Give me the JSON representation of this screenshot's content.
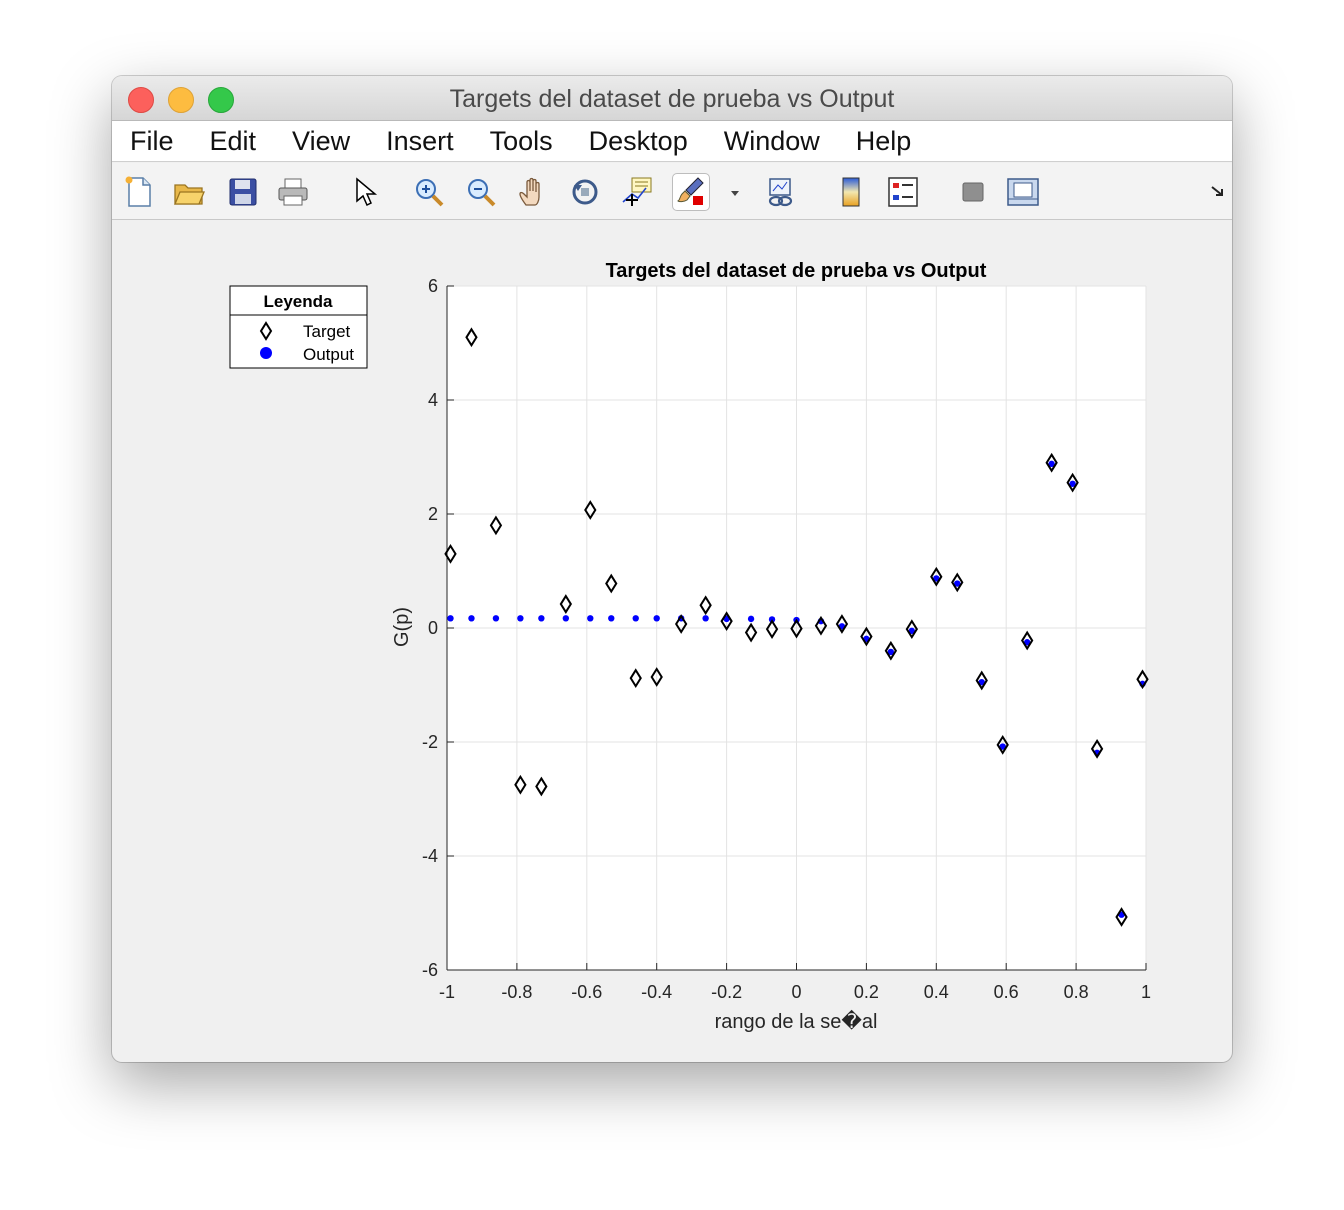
{
  "window": {
    "title": "Targets del dataset de prueba vs Output"
  },
  "menu": {
    "items": [
      "File",
      "Edit",
      "View",
      "Insert",
      "Tools",
      "Desktop",
      "Window",
      "Help"
    ]
  },
  "toolbar": {
    "icons": [
      "new-figure-icon",
      "open-file-icon",
      "save-icon",
      "print-icon",
      "pointer-icon",
      "zoom-in-icon",
      "zoom-out-icon",
      "pan-hand-icon",
      "rotate-3d-icon",
      "data-cursor-icon",
      "brush-icon",
      "brush-dropdown-icon",
      "link-plot-icon",
      "colorbar-icon",
      "legend-icon",
      "hide-plot-tools-icon",
      "show-plot-tools-icon",
      "dock-icon"
    ]
  },
  "legend": {
    "title": "Leyenda",
    "position": "outside-left"
  },
  "chart_data": {
    "type": "scatter",
    "title": "Targets del dataset de prueba vs Output",
    "xlabel": "rango de la se�al",
    "ylabel": "G(p)",
    "xlim": [
      -1,
      1
    ],
    "ylim": [
      -6,
      6
    ],
    "grid": true,
    "x_ticks": [
      "-1",
      "-0.8",
      "-0.6",
      "-0.4",
      "-0.2",
      "0",
      "0.2",
      "0.4",
      "0.6",
      "0.8",
      "1"
    ],
    "y_ticks": [
      "6",
      "4",
      "2",
      "0",
      "-2",
      "-4",
      "-6"
    ],
    "x": [
      -0.99,
      -0.93,
      -0.86,
      -0.79,
      -0.73,
      -0.66,
      -0.59,
      -0.53,
      -0.46,
      -0.4,
      -0.33,
      -0.26,
      -0.2,
      -0.13,
      -0.07,
      0.0,
      0.07,
      0.13,
      0.2,
      0.27,
      0.33,
      0.4,
      0.46,
      0.53,
      0.59,
      0.66,
      0.73,
      0.79,
      0.86,
      0.93,
      0.99
    ],
    "series": [
      {
        "name": "Target",
        "marker": "diamond",
        "color": "#000000",
        "values": [
          1.3,
          5.1,
          1.8,
          -2.75,
          -2.78,
          0.42,
          2.07,
          0.78,
          -0.88,
          -0.86,
          0.07,
          0.4,
          0.12,
          -0.08,
          -0.02,
          -0.01,
          0.04,
          0.07,
          -0.15,
          -0.4,
          -0.02,
          0.9,
          0.8,
          -0.92,
          -2.05,
          -0.22,
          2.9,
          2.55,
          -2.12,
          -5.07,
          -0.9
        ]
      },
      {
        "name": "Output",
        "marker": "dot",
        "color": "#0000ff",
        "values": [
          0.17,
          0.17,
          0.17,
          0.17,
          0.17,
          0.17,
          0.17,
          0.17,
          0.17,
          0.17,
          0.17,
          0.17,
          0.16,
          0.16,
          0.15,
          0.14,
          0.12,
          0.03,
          -0.19,
          -0.42,
          -0.05,
          0.87,
          0.78,
          -0.95,
          -2.08,
          -0.25,
          2.88,
          2.53,
          -2.19,
          -5.03,
          -0.98
        ]
      }
    ]
  }
}
